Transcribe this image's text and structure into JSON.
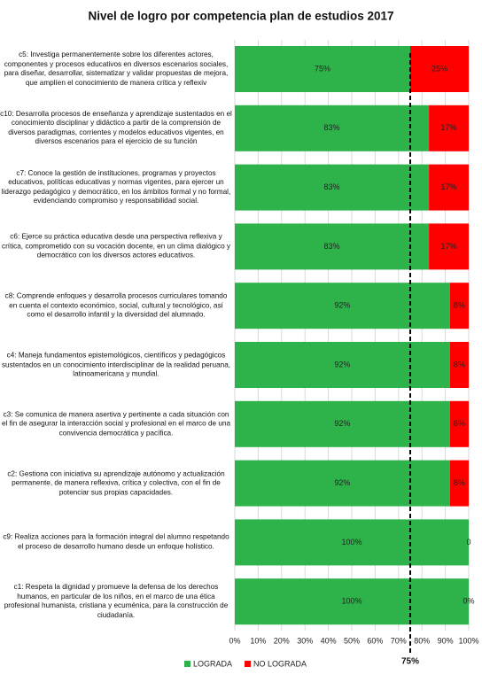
{
  "chart_data": {
    "type": "stacked_barh",
    "title": "Nivel de logro por competencia plan de estudios 2017",
    "categories": [
      "c5: Investiga permanentemente sobre los diferentes actores, componentes y procesos educativos en diversos escenarios sociales, para diseñar, desarrollar, sistematizar y validar propuestas de mejora, que amplíen el conocimiento de manera crítica y reflexiv",
      "c10: Desarrolla procesos de enseñanza y aprendizaje sustentados en el conocimiento disciplinar y didáctico a partir de la comprensión de diversos paradigmas, corrientes y modelos educativos vigentes, en diversos escenarios para el ejercicio de su función",
      "c7: Conoce la gestión de instituciones, programas y proyectos educativos, políticas educativas y normas vigentes, para ejercer un liderazgo pedagógico y democrático, en los ámbitos formal y no formal, evidenciando compromiso y responsabilidad social.",
      "c6: Ejerce su práctica educativa desde una perspectiva reflexiva y crítica, comprometido con su vocación docente, en un clima dialógico y democrático con los diversos actores educativos.",
      "c8: Comprende enfoques y desarrolla procesos curriculares tomando en cuenta el contexto económico, social, cultural y tecnológico, así como el desarrollo infantil y la diversidad del alumnado.",
      "c4: Maneja fundamentos epistemológicos, científicos y pedagógicos sustentados en un conocimiento interdisciplinar de la realidad peruana, latinoamericana y mundial.",
      "c3: Se comunica de manera asertiva y pertinente a cada situación con el fin de asegurar la interacción social y profesional en el marco de una convivencia democrática y pacífica.",
      "c2: Gestiona con iniciativa su aprendizaje autónomo y actualización permanente, de manera reflexiva, crítica y colectiva, con el fin de potenciar sus propias capacidades.",
      "c9: Realiza acciones para la formación integral del alumno respetando el proceso de desarrollo humano desde un enfoque holístico.",
      "c1: Respeta la dignidad y promueve la defensa de los derechos humanos, en particular de los niños, en el marco de una ética profesional humanista, cristiana y ecuménica, para la construcción de ciudadanía."
    ],
    "series": [
      {
        "name": "LOGRADA",
        "color": "#2eb34b",
        "values": [
          75,
          83,
          83,
          83,
          92,
          92,
          92,
          92,
          100,
          100
        ],
        "value_labels": [
          "75%",
          "83%",
          "83%",
          "83%",
          "92%",
          "92%",
          "92%",
          "92%",
          "100%",
          "100%"
        ]
      },
      {
        "name": "NO LOGRADA",
        "color": "#ff0000",
        "values": [
          25,
          17,
          17,
          17,
          8,
          8,
          8,
          8,
          0,
          0
        ],
        "value_labels": [
          "25%",
          "17%",
          "17%",
          "17%",
          "8%",
          "8%",
          "8%",
          "8%",
          "0",
          "0%"
        ]
      }
    ],
    "xlim": [
      0,
      100
    ],
    "xticks": [
      {
        "value": 0,
        "label": "0%"
      },
      {
        "value": 10,
        "label": "10%"
      },
      {
        "value": 20,
        "label": "20%"
      },
      {
        "value": 30,
        "label": "30%"
      },
      {
        "value": 40,
        "label": "40%"
      },
      {
        "value": 50,
        "label": "50%"
      },
      {
        "value": 60,
        "label": "60%"
      },
      {
        "value": 70,
        "label": "70%"
      },
      {
        "value": 80,
        "label": "80%"
      },
      {
        "value": 90,
        "label": "90%"
      },
      {
        "value": 100,
        "label": "100%"
      }
    ],
    "reference_line": {
      "value": 75,
      "label": "75%"
    },
    "grid": true,
    "legend": "bottom"
  }
}
